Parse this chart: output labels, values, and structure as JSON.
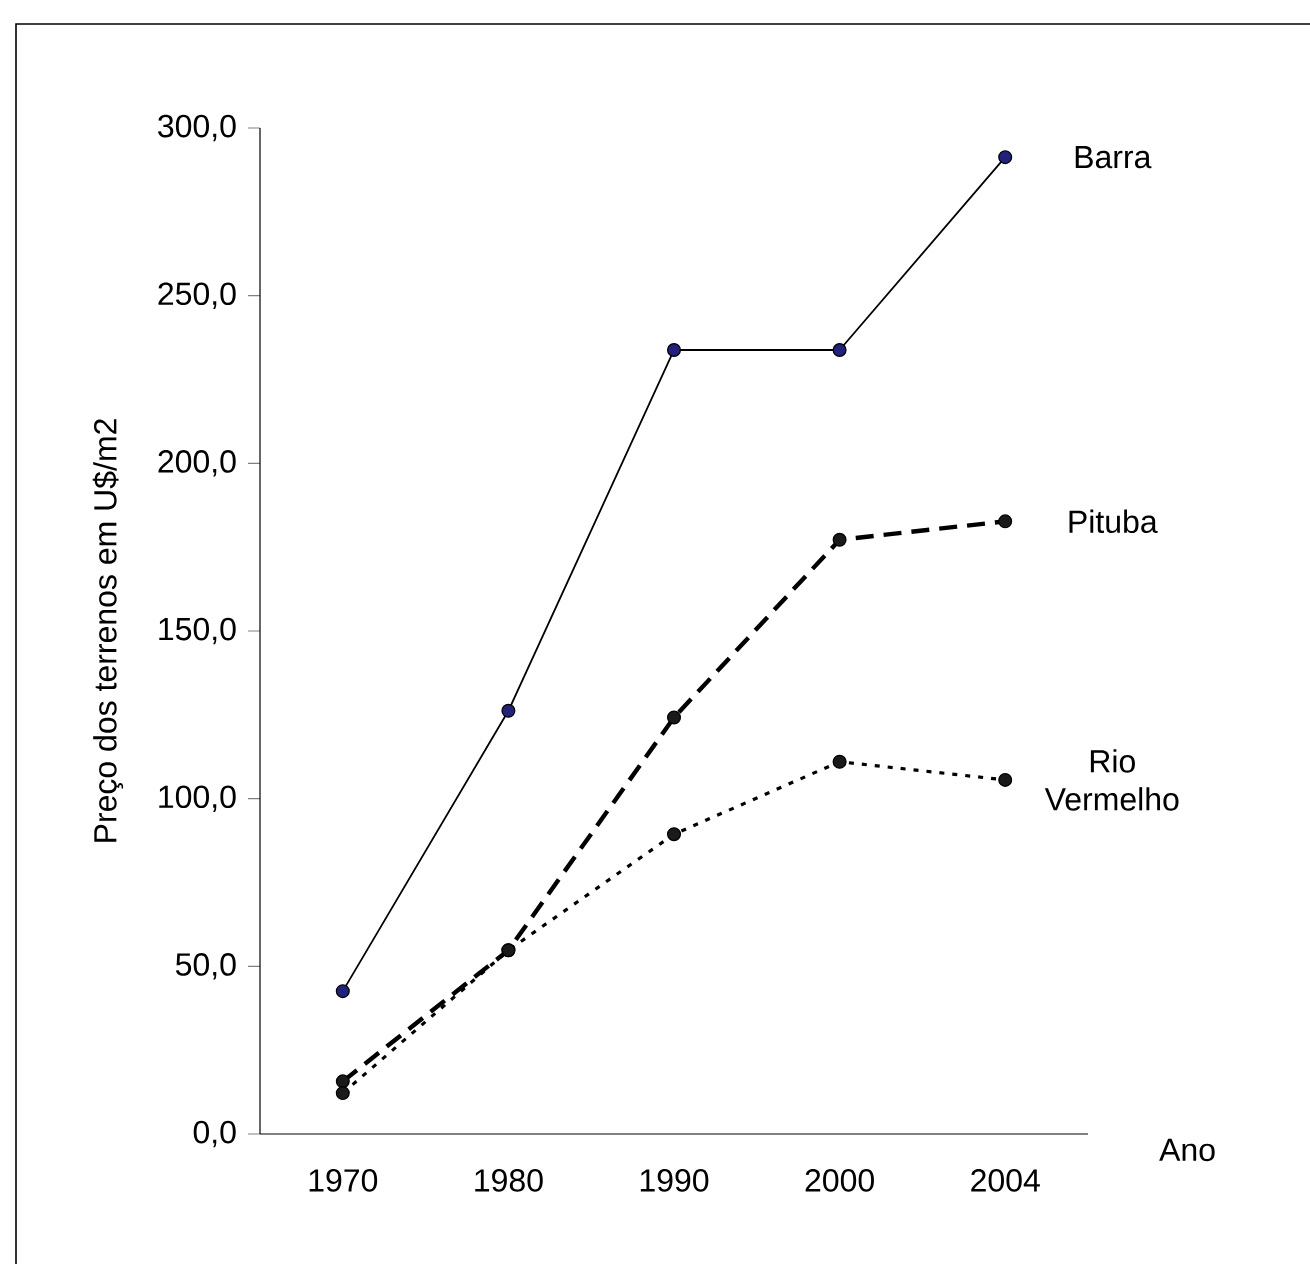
{
  "chart_data": {
    "type": "line",
    "xlabel": "Ano",
    "ylabel": "Preço dos terrenos em U$/m2",
    "categories": [
      "1970",
      "1980",
      "1990",
      "2000",
      "2004"
    ],
    "ylim": [
      0,
      300
    ],
    "yticks": [
      {
        "value": 0,
        "label": "0,0"
      },
      {
        "value": 50,
        "label": "50,0"
      },
      {
        "value": 100,
        "label": "100,0"
      },
      {
        "value": 150,
        "label": "150,0"
      },
      {
        "value": 200,
        "label": "200,0"
      },
      {
        "value": 250,
        "label": "250,0"
      },
      {
        "value": 300,
        "label": "300,0"
      }
    ],
    "marker": "circle",
    "grid": false,
    "legend": false,
    "series": [
      {
        "name": "Barra",
        "color": "#22227a",
        "line_style": "solid",
        "values": [
          42.6,
          126.2,
          233.8,
          233.8,
          291.3
        ]
      },
      {
        "name": "Pituba",
        "color": "#1a1a1a",
        "line_style": "dashed",
        "values": [
          15.7,
          54.8,
          124.2,
          177.2,
          182.7
        ]
      },
      {
        "name": "Rio Vermelho",
        "color": "#1a1a1a",
        "line_style": "dotted",
        "values": [
          12.2,
          54.8,
          89.4,
          111.0,
          105.6
        ]
      }
    ]
  }
}
